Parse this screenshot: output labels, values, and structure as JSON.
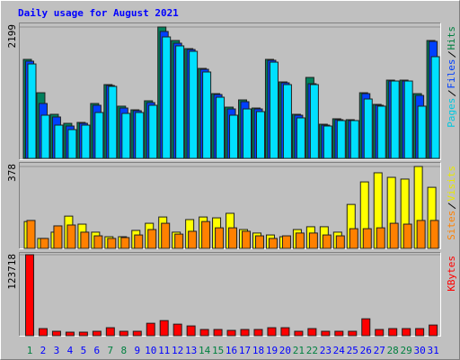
{
  "chart_data": [
    {
      "type": "bar",
      "title": "Daily usage for August 2021",
      "ylim": [
        0,
        2199
      ],
      "yticks": [
        2199
      ],
      "series": [
        {
          "name": "Hits",
          "color": "#00805c",
          "label_color": "#008040",
          "values": [
            1657,
            1099,
            738,
            587,
            602,
            919,
            1235,
            874,
            813,
            964,
            2199,
            1973,
            1837,
            1506,
            1084,
            858,
            979,
            843,
            1657,
            1280,
            738,
            1355,
            572,
            663,
            648,
            1099,
            904,
            1310,
            1310,
            1084,
            1973
          ]
        },
        {
          "name": "Files",
          "color": "#0040ff",
          "label_color": "#0040ff",
          "values": [
            1627,
            919,
            693,
            542,
            587,
            889,
            1220,
            843,
            798,
            934,
            2124,
            1928,
            1822,
            1491,
            1069,
            828,
            949,
            828,
            1642,
            1265,
            723,
            1250,
            557,
            648,
            633,
            1084,
            889,
            1295,
            1295,
            1054,
            1958
          ]
        },
        {
          "name": "Pages",
          "color": "#00e0ff",
          "label_color": "#00c8e0",
          "values": [
            1581,
            723,
            557,
            482,
            557,
            768,
            1205,
            753,
            768,
            889,
            2033,
            1883,
            1792,
            1446,
            1024,
            723,
            828,
            783,
            1611,
            1235,
            678,
            1235,
            542,
            633,
            633,
            994,
            874,
            1295,
            1295,
            874,
            1702
          ]
        }
      ]
    },
    {
      "type": "bar",
      "ylim": [
        0,
        378
      ],
      "yticks": [
        378
      ],
      "series": [
        {
          "name": "Visits",
          "color": "#ffff00",
          "label_color": "#e8e800",
          "values": [
            124,
            46,
            75,
            149,
            112,
            75,
            54,
            54,
            83,
            116,
            145,
            75,
            133,
            145,
            141,
            162,
            87,
            71,
            62,
            54,
            87,
            100,
            100,
            75,
            203,
            307,
            349,
            328,
            320,
            378,
            282
          ]
        },
        {
          "name": "Sites",
          "color": "#ff8000",
          "label_color": "#ff8000",
          "values": [
            129,
            46,
            104,
            108,
            75,
            58,
            46,
            50,
            62,
            87,
            116,
            66,
            79,
            124,
            95,
            95,
            79,
            58,
            46,
            58,
            71,
            71,
            62,
            58,
            91,
            91,
            95,
            116,
            112,
            129,
            129
          ]
        }
      ]
    },
    {
      "type": "bar",
      "ylim": [
        0,
        123718
      ],
      "yticks": [
        123718
      ],
      "categories": [
        "1",
        "2",
        "3",
        "4",
        "5",
        "6",
        "7",
        "8",
        "9",
        "10",
        "11",
        "12",
        "13",
        "14",
        "15",
        "16",
        "17",
        "18",
        "19",
        "20",
        "21",
        "22",
        "23",
        "24",
        "25",
        "26",
        "27",
        "28",
        "29",
        "30",
        "31"
      ],
      "category_colors": [
        "#008040",
        "#0000ff",
        "#0000ff",
        "#0000ff",
        "#0000ff",
        "#0000ff",
        "#008040",
        "#008040",
        "#0000ff",
        "#0000ff",
        "#0000ff",
        "#0000ff",
        "#0000ff",
        "#008040",
        "#008040",
        "#0000ff",
        "#0000ff",
        "#0000ff",
        "#0000ff",
        "#0000ff",
        "#008040",
        "#008040",
        "#0000ff",
        "#0000ff",
        "#0000ff",
        "#0000ff",
        "#0000ff",
        "#008040",
        "#008040",
        "#0000ff",
        "#0000ff"
      ],
      "series": [
        {
          "name": "KBytes",
          "color": "#ff0000",
          "label_color": "#ff0000",
          "values": [
            123718,
            10876,
            6798,
            5438,
            5438,
            6798,
            12236,
            6798,
            6798,
            19033,
            23112,
            17674,
            14955,
            9517,
            9517,
            8157,
            9517,
            9517,
            12236,
            12236,
            6798,
            10876,
            6798,
            6798,
            6798,
            25831,
            9517,
            10876,
            10876,
            10876,
            16314
          ]
        }
      ]
    }
  ]
}
